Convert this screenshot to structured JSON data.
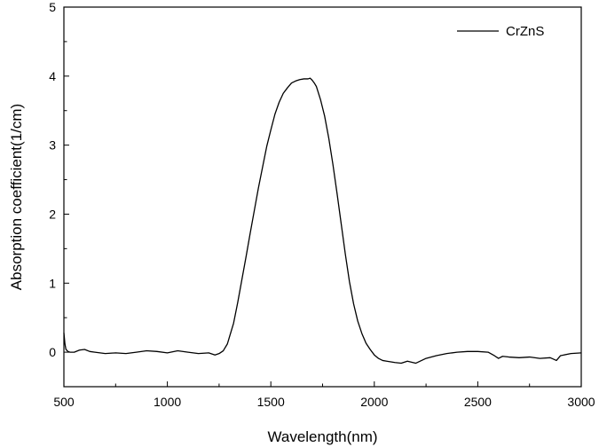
{
  "chart_data": {
    "type": "line",
    "title": "",
    "xlabel": "Wavelength(nm)",
    "ylabel": "Absorption coefficient(1/cm)",
    "xlim": [
      500,
      3000
    ],
    "ylim": [
      -0.5,
      5
    ],
    "xticks": [
      500,
      1000,
      1500,
      2000,
      2500,
      3000
    ],
    "yticks": [
      0,
      1,
      2,
      3,
      4,
      5
    ],
    "x_minor_step": 250,
    "y_minor_step": 0.5,
    "grid": false,
    "legend_position": "top-right",
    "line_color": "#000000",
    "series": [
      {
        "name": "CrZnS",
        "x": [
          500,
          505,
          510,
          520,
          530,
          550,
          575,
          600,
          625,
          650,
          700,
          750,
          800,
          850,
          900,
          950,
          1000,
          1050,
          1100,
          1150,
          1200,
          1230,
          1250,
          1270,
          1290,
          1300,
          1320,
          1340,
          1360,
          1380,
          1400,
          1420,
          1440,
          1460,
          1480,
          1500,
          1520,
          1540,
          1560,
          1580,
          1600,
          1620,
          1640,
          1660,
          1680,
          1690,
          1700,
          1710,
          1720,
          1740,
          1760,
          1780,
          1800,
          1820,
          1840,
          1860,
          1880,
          1900,
          1920,
          1940,
          1960,
          1980,
          2000,
          2020,
          2040,
          2060,
          2080,
          2100,
          2130,
          2160,
          2200,
          2250,
          2300,
          2350,
          2400,
          2450,
          2500,
          2550,
          2580,
          2600,
          2620,
          2650,
          2700,
          2750,
          2800,
          2850,
          2880,
          2900,
          2950,
          3000
        ],
        "y": [
          0.28,
          0.12,
          0.04,
          0.01,
          0.0,
          0.0,
          0.03,
          0.04,
          0.01,
          0.0,
          -0.02,
          -0.01,
          -0.02,
          0.0,
          0.02,
          0.01,
          -0.01,
          0.02,
          0.0,
          -0.02,
          -0.01,
          -0.04,
          -0.02,
          0.02,
          0.12,
          0.22,
          0.42,
          0.72,
          1.05,
          1.38,
          1.72,
          2.05,
          2.38,
          2.68,
          2.98,
          3.22,
          3.45,
          3.62,
          3.75,
          3.83,
          3.9,
          3.93,
          3.95,
          3.96,
          3.96,
          3.97,
          3.94,
          3.9,
          3.85,
          3.66,
          3.42,
          3.1,
          2.72,
          2.3,
          1.86,
          1.42,
          1.02,
          0.7,
          0.45,
          0.27,
          0.13,
          0.04,
          -0.04,
          -0.09,
          -0.12,
          -0.13,
          -0.14,
          -0.15,
          -0.16,
          -0.13,
          -0.16,
          -0.09,
          -0.05,
          -0.02,
          0.0,
          0.01,
          0.01,
          0.0,
          -0.05,
          -0.09,
          -0.06,
          -0.07,
          -0.08,
          -0.07,
          -0.09,
          -0.08,
          -0.12,
          -0.05,
          -0.02,
          -0.01
        ]
      }
    ]
  }
}
